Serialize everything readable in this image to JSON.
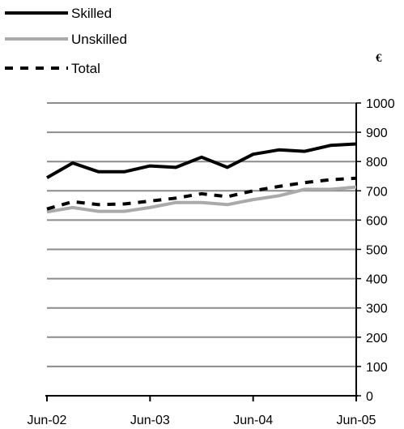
{
  "chart_data": {
    "type": "line",
    "title": "",
    "xlabel": "",
    "ylabel": "€",
    "x": [
      "Jun-02",
      "Sep-02",
      "Dec-02",
      "Mar-03",
      "Jun-03",
      "Sep-03",
      "Dec-03",
      "Mar-04",
      "Jun-04",
      "Sep-04",
      "Dec-04",
      "Mar-05",
      "Jun-05"
    ],
    "xtick_labels": [
      "Jun-02",
      "Jun-03",
      "Jun-04",
      "Jun-05"
    ],
    "ylim": [
      0,
      1000
    ],
    "yticks": [
      0,
      100,
      200,
      300,
      400,
      500,
      600,
      700,
      800,
      900,
      1000
    ],
    "grid": true,
    "legend_position": "top-left",
    "series": [
      {
        "name": "Skilled",
        "color": "#000000",
        "style": "solid",
        "values": [
          745,
          795,
          765,
          765,
          785,
          780,
          815,
          780,
          825,
          840,
          835,
          855,
          860
        ]
      },
      {
        "name": "Unskilled",
        "color": "#aaaaaa",
        "style": "solid",
        "values": [
          628,
          643,
          630,
          630,
          643,
          660,
          660,
          653,
          670,
          683,
          705,
          705,
          713
        ]
      },
      {
        "name": "Total",
        "color": "#000000",
        "style": "dashed",
        "values": [
          638,
          663,
          653,
          655,
          665,
          675,
          690,
          680,
          700,
          715,
          728,
          738,
          743
        ]
      }
    ]
  }
}
